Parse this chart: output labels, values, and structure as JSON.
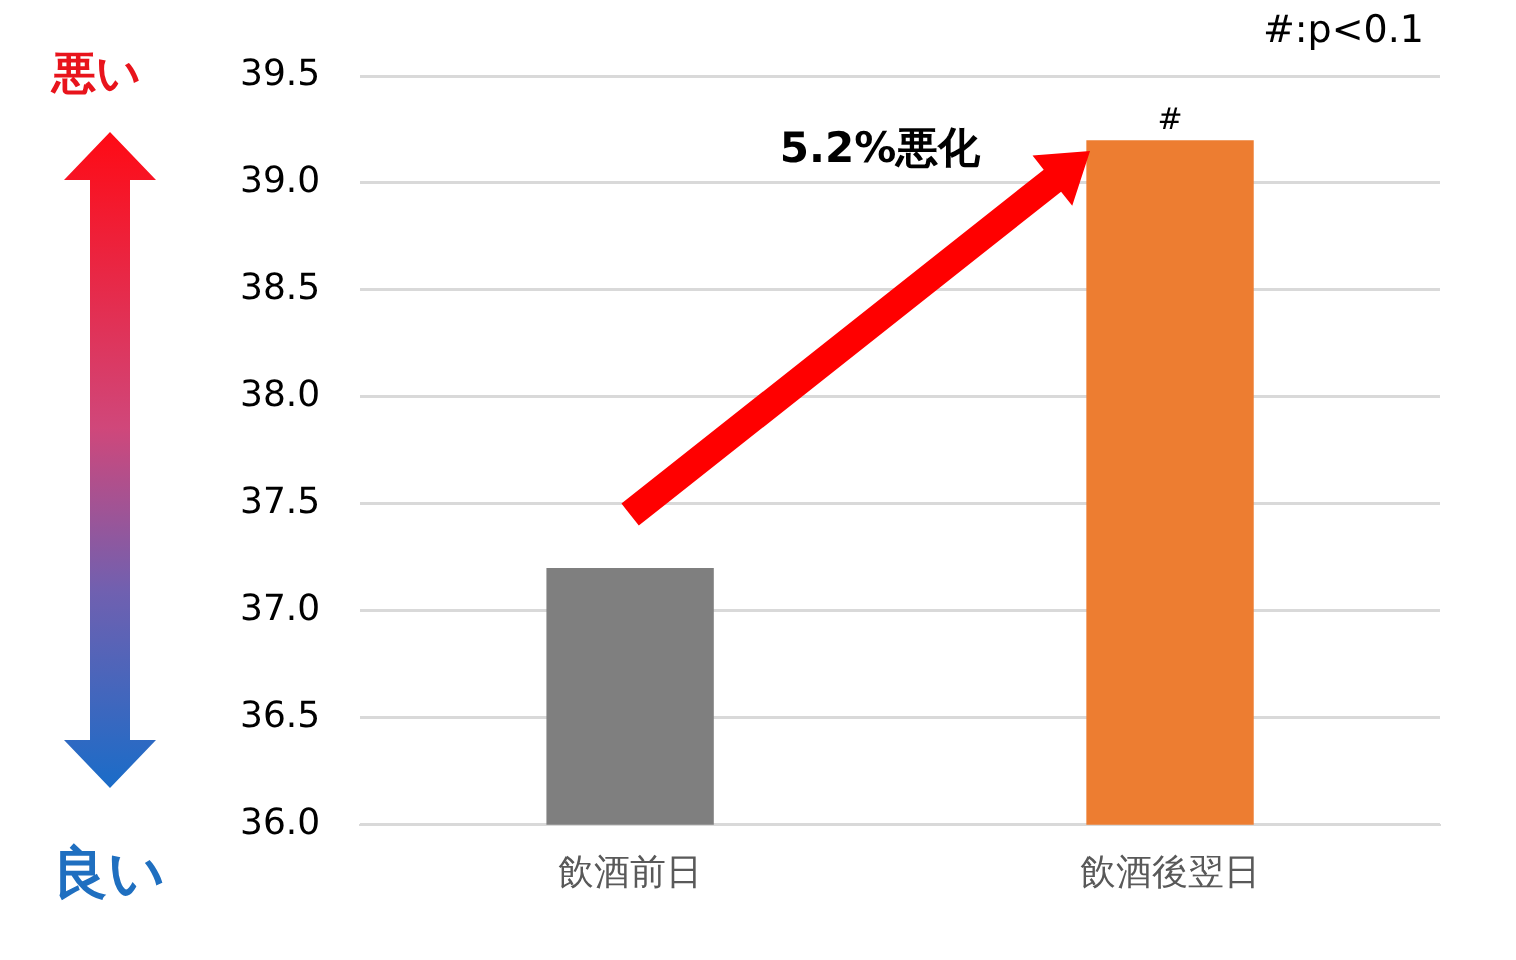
{
  "chart_data": {
    "type": "bar",
    "categories": [
      "飲酒前日",
      "飲酒後翌日"
    ],
    "values": [
      37.2,
      39.2
    ],
    "colors": [
      "#7f7f7f",
      "#ed7d31"
    ],
    "ylim": [
      36,
      39.5
    ],
    "yticks": [
      {
        "value": 36,
        "label": "36.0"
      },
      {
        "value": 36.5,
        "label": "36.5"
      },
      {
        "value": 37,
        "label": "37.0"
      },
      {
        "value": 37.5,
        "label": "37.5"
      },
      {
        "value": 38,
        "label": "38.0"
      },
      {
        "value": 38.5,
        "label": "38.5"
      },
      {
        "value": 39,
        "label": "39.0"
      },
      {
        "value": 39.5,
        "label": "39.5"
      }
    ],
    "grid": "y",
    "legend": false,
    "annotations": [
      "悪い",
      "良い",
      "5.2%悪化",
      "#:p<0.1",
      {
        "text": "#",
        "x": "飲酒後翌日",
        "y": 39.2
      }
    ]
  }
}
